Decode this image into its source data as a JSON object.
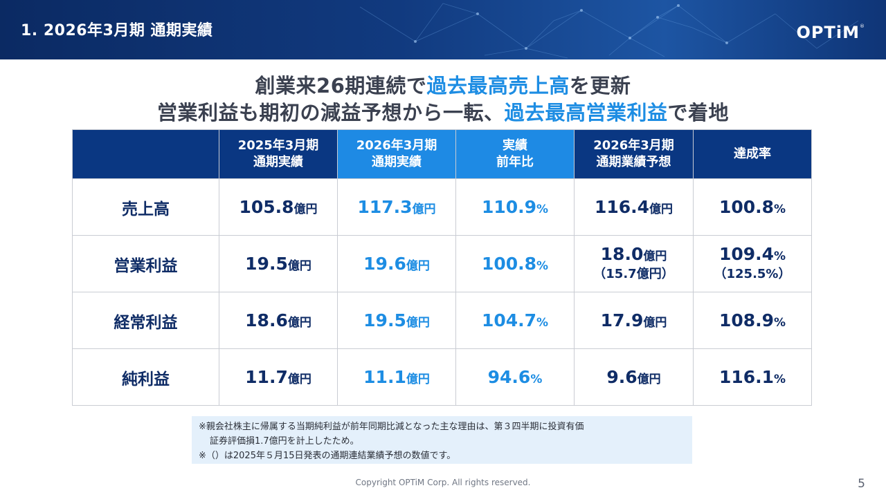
{
  "header": {
    "title": "1. 2026年3月期 通期実績",
    "logo": "OPTiM",
    "logo_mark": "®"
  },
  "headline": {
    "line1_pre": "創業来26期連続で",
    "line1_hl": "過去最高売上高",
    "line1_post": "を更新",
    "line2_pre": "営業利益も期初の減益予想から一転、",
    "line2_hl": "過去最高営業利益",
    "line2_post": "で着地"
  },
  "table": {
    "columns": [
      {
        "line1": "2025年3月期",
        "line2": "通期実績"
      },
      {
        "line1": "2026年3月期",
        "line2": "通期実績"
      },
      {
        "line1": "実績",
        "line2": "前年比"
      },
      {
        "line1": "2026年3月期",
        "line2": "通期業績予想"
      },
      {
        "line1": "達成率",
        "line2": ""
      }
    ],
    "unit_oku": "億円",
    "unit_pct": "%",
    "rows": [
      {
        "label": "売上高",
        "prev": "105.8",
        "curr": "117.3",
        "yoy": "110.9",
        "forecast": "116.4",
        "forecast_sub": "",
        "achieve": "100.8",
        "achieve_sub": ""
      },
      {
        "label": "営業利益",
        "prev": "19.5",
        "curr": "19.6",
        "yoy": "100.8",
        "forecast": "18.0",
        "forecast_sub": "（15.7億円）",
        "achieve": "109.4",
        "achieve_sub": "（125.5%）"
      },
      {
        "label": "経常利益",
        "prev": "18.6",
        "curr": "19.5",
        "yoy": "104.7",
        "forecast": "17.9",
        "forecast_sub": "",
        "achieve": "108.9",
        "achieve_sub": ""
      },
      {
        "label": "純利益",
        "prev": "11.7",
        "curr": "11.1",
        "yoy": "94.6",
        "forecast": "9.6",
        "forecast_sub": "",
        "achieve": "116.1",
        "achieve_sub": ""
      }
    ]
  },
  "notes": {
    "line1": "※親会社株主に帰属する当期純利益が前年同期比減となった主な理由は、第３四半期に投資有価",
    "line2": "証券評価損1.7億円を計上したため。",
    "line3": "※（）は2025年５月15日発表の通期連結業績予想の数値です。"
  },
  "footer": {
    "copyright": "Copyright OPTiM Corp. All rights reserved.",
    "page": "5"
  },
  "colors": {
    "navy": "#0a3782",
    "accent_blue": "#1e8ae4",
    "highlight_text": "#1d8de3",
    "note_bg": "#e4f0fb"
  }
}
